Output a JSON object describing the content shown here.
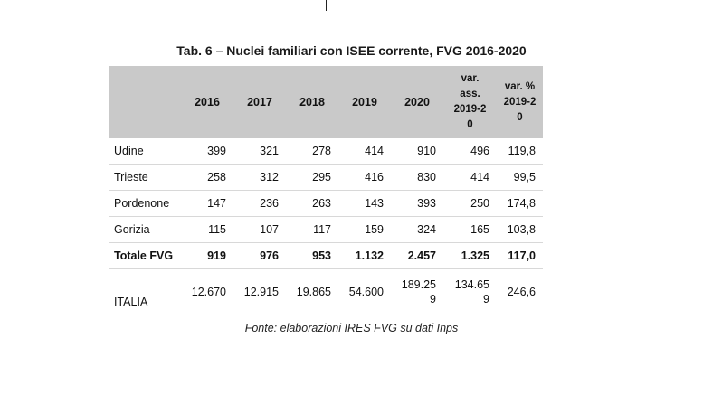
{
  "title": "Tab. 6 – Nuclei familiari con ISEE corrente, FVG 2016-2020",
  "columns": [
    {
      "lines": [
        ""
      ]
    },
    {
      "lines": [
        "2016"
      ]
    },
    {
      "lines": [
        "2017"
      ]
    },
    {
      "lines": [
        "2018"
      ]
    },
    {
      "lines": [
        "2019"
      ]
    },
    {
      "lines": [
        "2020"
      ]
    },
    {
      "lines": [
        "var.",
        "ass.",
        "2019-2",
        "0"
      ]
    },
    {
      "lines": [
        "var. %",
        "2019-2",
        "0"
      ]
    }
  ],
  "rows": [
    {
      "label": "Udine",
      "values": [
        [
          "399"
        ],
        [
          "321"
        ],
        [
          "278"
        ],
        [
          "414"
        ],
        [
          "910"
        ],
        [
          "496"
        ],
        [
          "119,8"
        ]
      ]
    },
    {
      "label": "Trieste",
      "values": [
        [
          "258"
        ],
        [
          "312"
        ],
        [
          "295"
        ],
        [
          "416"
        ],
        [
          "830"
        ],
        [
          "414"
        ],
        [
          "99,5"
        ]
      ]
    },
    {
      "label": "Pordenone",
      "values": [
        [
          "147"
        ],
        [
          "236"
        ],
        [
          "263"
        ],
        [
          "143"
        ],
        [
          "393"
        ],
        [
          "250"
        ],
        [
          "174,8"
        ]
      ]
    },
    {
      "label": "Gorizia",
      "values": [
        [
          "115"
        ],
        [
          "107"
        ],
        [
          "117"
        ],
        [
          "159"
        ],
        [
          "324"
        ],
        [
          "165"
        ],
        [
          "103,8"
        ]
      ]
    },
    {
      "label": "Totale FVG",
      "values": [
        [
          "919"
        ],
        [
          "976"
        ],
        [
          "953"
        ],
        [
          "1.132"
        ],
        [
          "2.457"
        ],
        [
          "1.325"
        ],
        [
          "117,0"
        ]
      ]
    },
    {
      "label": "ITALIA",
      "values": [
        [
          "12.670"
        ],
        [
          "12.915"
        ],
        [
          "19.865"
        ],
        [
          "54.600"
        ],
        [
          "189.25",
          "9"
        ],
        [
          "134.65",
          "9"
        ],
        [
          "246,6"
        ]
      ]
    }
  ],
  "source": "Fonte: elaborazioni IRES FVG su dati Inps"
}
